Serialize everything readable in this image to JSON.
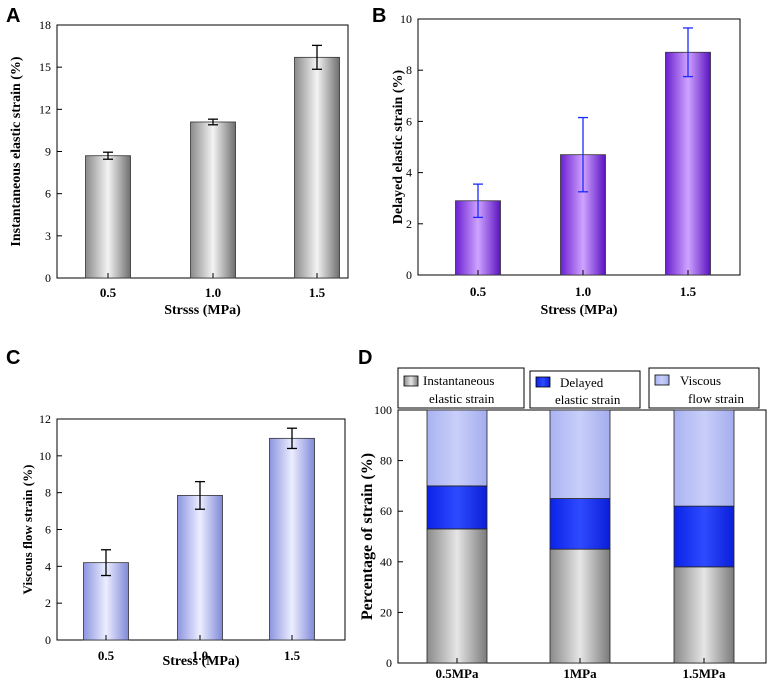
{
  "colors": {
    "gray_dark": "#7a7a7a",
    "gray_light": "#f2f2f2",
    "purple_dark": "#6a1fd0",
    "purple_light": "#c89cff",
    "blue_dark": "#8f97e0",
    "blue_light": "#e4e7ff",
    "error_black": "#000000",
    "error_blue": "#1a2bff",
    "stack_delayed": "#1030ff",
    "stack_viscous": "#b4bdf6"
  },
  "chart_data": [
    {
      "panel": "A",
      "type": "bar",
      "categories": [
        "0.5",
        "1.0",
        "1.5"
      ],
      "values": [
        8.7,
        11.1,
        15.7
      ],
      "errors": [
        0.25,
        0.2,
        0.85
      ],
      "title": "",
      "xlabel": "Strsss (MPa)",
      "ylabel": "Instantaneous elastic strain (%)",
      "ylim": [
        0,
        18
      ],
      "yticks": [
        "0",
        "3",
        "6",
        "9",
        "12",
        "15",
        "18"
      ],
      "bar_color": "gray",
      "error_color": "black",
      "grid": false
    },
    {
      "panel": "B",
      "type": "bar",
      "categories": [
        "0.5",
        "1.0",
        "1.5"
      ],
      "values": [
        2.9,
        4.7,
        8.7
      ],
      "errors": [
        0.65,
        1.45,
        0.95
      ],
      "title": "",
      "xlabel": "Stress (MPa)",
      "ylabel": "Delayed elastic strain (%)",
      "ylim": [
        0,
        10
      ],
      "yticks": [
        "0",
        "2",
        "4",
        "6",
        "8",
        "10"
      ],
      "bar_color": "purple",
      "error_color": "blue",
      "grid": false
    },
    {
      "panel": "C",
      "type": "bar",
      "categories": [
        "0.5",
        "1.0",
        "1.5"
      ],
      "values": [
        4.2,
        7.85,
        10.95
      ],
      "errors": [
        0.7,
        0.75,
        0.55
      ],
      "title": "",
      "xlabel": "Stress (MPa)",
      "ylabel": "Viscous flow strain (%)",
      "ylim": [
        0,
        12
      ],
      "yticks": [
        "0",
        "2",
        "4",
        "6",
        "8",
        "10",
        "12"
      ],
      "bar_color": "blue",
      "error_color": "black",
      "grid": false
    },
    {
      "panel": "D",
      "type": "bar",
      "stacked": true,
      "categories": [
        "0.5MPa",
        "1MPa",
        "1.5MPa"
      ],
      "series": [
        {
          "name": "Instantaneous elastic strain",
          "legend_lines": [
            "Instantaneous",
            "elastic strain"
          ],
          "values": [
            53,
            45,
            38
          ]
        },
        {
          "name": "Delayed elastic strain",
          "legend_lines": [
            "Delayed",
            "elastic strain"
          ],
          "values": [
            17,
            20,
            24
          ]
        },
        {
          "name": "Viscous flow strain",
          "legend_lines": [
            "Viscous",
            "flow strain"
          ],
          "values": [
            30,
            35,
            38
          ]
        }
      ],
      "title": "",
      "xlabel": "",
      "ylabel": "Percentage of strain (%)",
      "ylim": [
        0,
        100
      ],
      "yticks": [
        "0",
        "20",
        "40",
        "60",
        "80",
        "100"
      ],
      "legend_position": "top",
      "grid": false
    }
  ]
}
